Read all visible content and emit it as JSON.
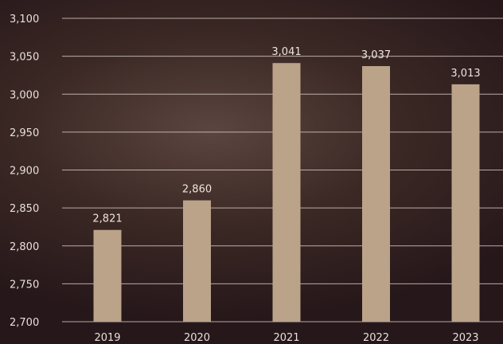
{
  "chart_data": {
    "type": "bar",
    "categories": [
      "2019",
      "2020",
      "2021",
      "2022",
      "2023"
    ],
    "values": [
      2821,
      2860,
      3041,
      3037,
      3013
    ],
    "data_labels": [
      "2,821",
      "2,860",
      "3,041",
      "3,037",
      "3,013"
    ],
    "title": "",
    "xlabel": "",
    "ylabel": "",
    "ylim": [
      2700,
      3100
    ],
    "yticks": [
      2700,
      2750,
      2800,
      2850,
      2900,
      2950,
      3000,
      3050,
      3100
    ],
    "ytick_labels": [
      "2,700",
      "2,750",
      "2,800",
      "2,850",
      "2,900",
      "2,950",
      "3,000",
      "3,050",
      "3,100"
    ],
    "grid": true,
    "legend": "none",
    "colors": {
      "bar": "#baa389",
      "grid": "#d9cfc9",
      "text": "#e8e0db",
      "background": "#3c2925"
    }
  }
}
